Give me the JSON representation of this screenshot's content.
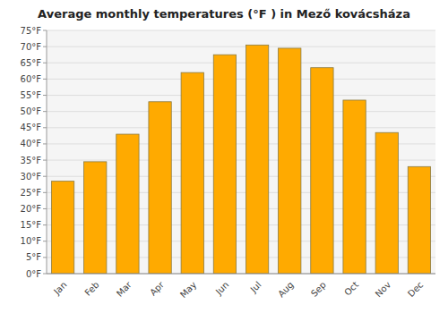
{
  "chart_data": {
    "type": "bar",
    "title": "Average monthly temperatures (°F ) in Mező kovácsháza",
    "categories": [
      "Jan",
      "Feb",
      "Mar",
      "Apr",
      "May",
      "Jun",
      "Jul",
      "Aug",
      "Sep",
      "Oct",
      "Nov",
      "Dec"
    ],
    "values": [
      28.5,
      34.5,
      43.0,
      53.0,
      62.0,
      67.5,
      70.5,
      69.5,
      63.5,
      53.5,
      43.5,
      33.0
    ],
    "color": "#FFAA00",
    "ylim": [
      0,
      75
    ],
    "yticks": [
      {
        "value": 0,
        "label": "0°F"
      },
      {
        "value": 5,
        "label": "5°F"
      },
      {
        "value": 10,
        "label": "10°F"
      },
      {
        "value": 15,
        "label": "15°F"
      },
      {
        "value": 20,
        "label": "20°F"
      },
      {
        "value": 25,
        "label": "25°F"
      },
      {
        "value": 30,
        "label": "30°F"
      },
      {
        "value": 35,
        "label": "35°F"
      },
      {
        "value": 40,
        "label": "40°F"
      },
      {
        "value": 45,
        "label": "45°F"
      },
      {
        "value": 50,
        "label": "50°F"
      },
      {
        "value": 55,
        "label": "55°F"
      },
      {
        "value": 60,
        "label": "60°F"
      },
      {
        "value": 65,
        "label": "65°F"
      },
      {
        "value": 70,
        "label": "70°F"
      },
      {
        "value": 75,
        "label": "75°F"
      }
    ],
    "grid": true
  }
}
